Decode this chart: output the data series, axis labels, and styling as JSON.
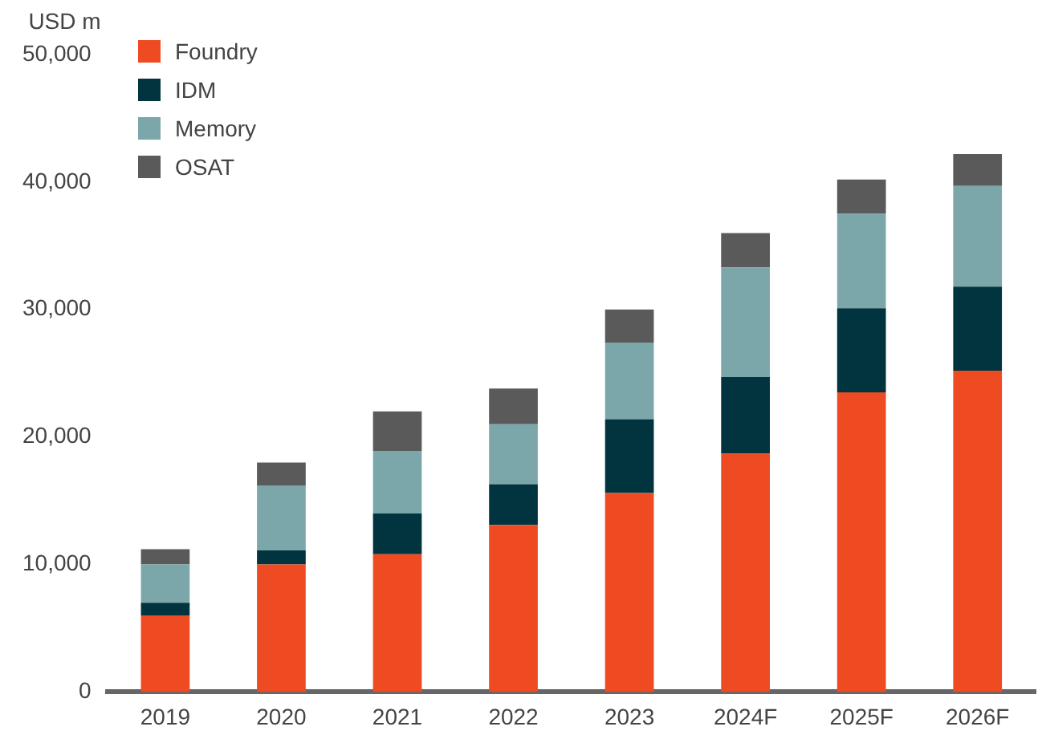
{
  "chart_data": {
    "type": "bar",
    "stacked": true,
    "ylabel": "USD m",
    "categories": [
      "2019",
      "2020",
      "2021",
      "2022",
      "2023",
      "2024F",
      "2025F",
      "2026F"
    ],
    "series": [
      {
        "name": "Foundry",
        "color": "#ee4b22",
        "values": [
          6000,
          10000,
          10800,
          13100,
          15600,
          18700,
          23500,
          25200
        ]
      },
      {
        "name": "IDM",
        "color": "#023440",
        "values": [
          1000,
          1100,
          3200,
          3200,
          5800,
          6000,
          6600,
          6600
        ]
      },
      {
        "name": "Memory",
        "color": "#7ca7aa",
        "values": [
          3000,
          5100,
          4900,
          4700,
          6000,
          8600,
          7400,
          7900
        ]
      },
      {
        "name": "OSAT",
        "color": "#595a59",
        "values": [
          1200,
          1800,
          3100,
          2800,
          2600,
          2700,
          2700,
          2500
        ]
      }
    ],
    "ylim": [
      0,
      50000
    ],
    "yticks": [
      0,
      {
        "value": 10000,
        "label": "10,000"
      },
      {
        "value": 20000,
        "label": "20,000"
      },
      {
        "value": 30000,
        "label": "30,000"
      },
      {
        "value": 40000,
        "label": "40,000"
      },
      {
        "value": 50000,
        "label": "50,000"
      }
    ],
    "grid": false,
    "legend": "top left"
  }
}
